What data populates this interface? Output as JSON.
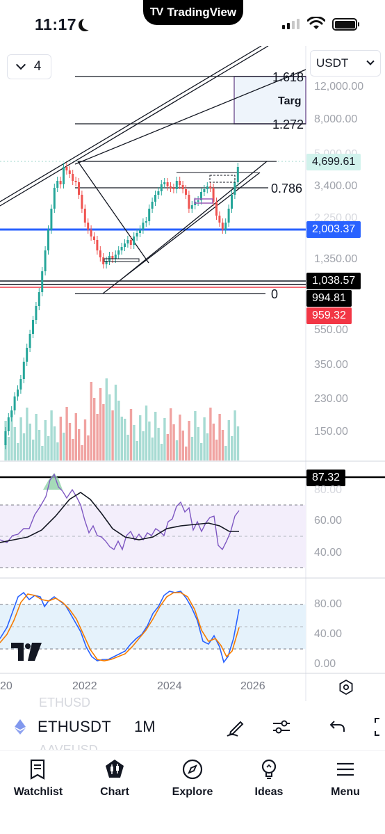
{
  "status_bar": {
    "time": "11:17",
    "island_app": "TradingView"
  },
  "toolbar": {
    "interval_count": "4",
    "currency": "USDT"
  },
  "price_axis": {
    "labels": [
      "12,000.00",
      "8,000.00",
      "5,000.00",
      "3,400.00",
      "2,250.00",
      "1,350.00",
      "550.00",
      "350.00",
      "230.00",
      "150.00"
    ],
    "tags": {
      "last_price": "4,699.61",
      "blue_line": "2,003.37",
      "level_1": "1,038.57",
      "level_2": "994.81",
      "level_3": "959.32"
    }
  },
  "fib": {
    "level_1618": "1.618",
    "level_1272": "1.272",
    "level_0786": "0.786",
    "level_0": "0",
    "target": "Targ"
  },
  "rsi_panel": {
    "value_tag": "87.32",
    "labels": [
      "80.00",
      "60.00",
      "40.00"
    ]
  },
  "stoch_panel": {
    "labels": [
      "80.00",
      "40.00",
      "0.00"
    ]
  },
  "time_axis": {
    "years": [
      "20",
      "2022",
      "2024",
      "2026"
    ]
  },
  "symbol_bar": {
    "symbol": "ETHUSDT",
    "timeframe": "1M",
    "ghost_above": "ETHUSD",
    "ghost_below": "AAVEUSD"
  },
  "tabs": [
    {
      "label": "Watchlist",
      "icon": "watchlist-icon"
    },
    {
      "label": "Chart",
      "icon": "chart-icon"
    },
    {
      "label": "Explore",
      "icon": "compass-icon"
    },
    {
      "label": "Ideas",
      "icon": "lightbulb-icon"
    },
    {
      "label": "Menu",
      "icon": "menu-icon"
    }
  ],
  "colors": {
    "up": "#26a69a",
    "down": "#ef5350",
    "blue_line": "#2962ff",
    "rsi": "#7e57c2",
    "stoch_k": "#2962ff",
    "stoch_d": "#f57c00",
    "last_price_tag": "#d1f2ec",
    "level_3_tag": "#f23645"
  }
}
